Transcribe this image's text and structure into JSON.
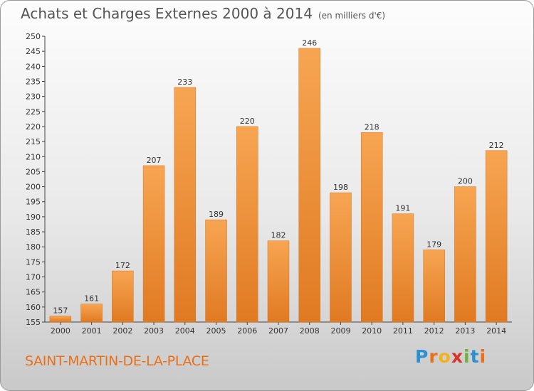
{
  "header": {
    "title": "Achats et Charges Externes 2000 à 2014",
    "unit": "(en milliers d'€)"
  },
  "footer": {
    "city": "SAINT-MARTIN-DE-LA-PLACE",
    "logo_letters": [
      "P",
      "r",
      "o",
      "x",
      "i",
      "t",
      "i"
    ]
  },
  "colors": {
    "bar_light": "#f7a552",
    "bar_dark": "#e07a22",
    "city": "#e8701a",
    "logo": [
      "#2e8fcf",
      "#e8701a",
      "#f2b21b",
      "#d9342b",
      "#6db33f",
      "#2e8fcf",
      "#e8701a"
    ]
  },
  "chart_data": {
    "type": "bar",
    "title": "Achats et Charges Externes 2000 à 2014",
    "subtitle": "(en milliers d'€)",
    "categories": [
      "2000",
      "2001",
      "2002",
      "2003",
      "2004",
      "2005",
      "2006",
      "2007",
      "2008",
      "2009",
      "2010",
      "2011",
      "2012",
      "2013",
      "2014"
    ],
    "values": [
      157,
      161,
      172,
      207,
      233,
      189,
      220,
      182,
      246,
      198,
      218,
      191,
      179,
      200,
      212
    ],
    "ylim": [
      155,
      250
    ],
    "yticks": [
      155,
      160,
      165,
      170,
      175,
      180,
      185,
      190,
      195,
      200,
      205,
      210,
      215,
      220,
      225,
      230,
      235,
      240,
      245,
      250
    ],
    "grid": false,
    "legend": "none"
  }
}
